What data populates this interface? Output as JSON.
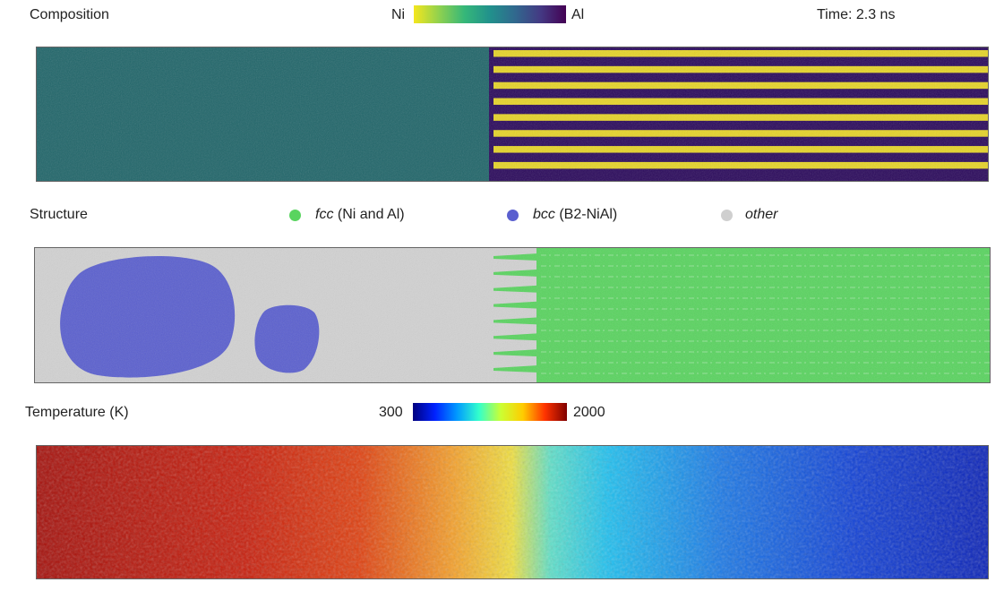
{
  "composition": {
    "title": "Composition",
    "colorbar": {
      "left_label": "Ni",
      "right_label": "Al",
      "colors": [
        "#f4e61e",
        "#8fd14f",
        "#35b779",
        "#21918c",
        "#31688e",
        "#443983",
        "#440154"
      ]
    },
    "time_label": "Time: 2.3 ns",
    "colors": {
      "mixed": "#21666a",
      "ni": "#e6d429",
      "al": "#2b0a5c"
    },
    "al_layer_count": 8
  },
  "structure": {
    "title": "Structure",
    "legend": [
      {
        "name_italic": "fcc",
        "name_rest": " (Ni and Al)",
        "color": "#59d45f"
      },
      {
        "name_italic": "bcc",
        "name_rest": " (B2-NiAl)",
        "color": "#5a5fcf"
      },
      {
        "name_italic": "other",
        "name_rest": "",
        "color": "#cfcfcf"
      }
    ],
    "colors": {
      "fcc": "#59d45f",
      "bcc": "#5a5fcf",
      "other": "#d2d2d2"
    }
  },
  "temperature": {
    "title": "Temperature (K)",
    "colorbar": {
      "min_label": "300",
      "max_label": "2000",
      "colors": [
        "#00007f",
        "#0022ff",
        "#0099ff",
        "#33ffcc",
        "#ccff33",
        "#ffcc00",
        "#ff3300",
        "#7f0000"
      ]
    }
  }
}
